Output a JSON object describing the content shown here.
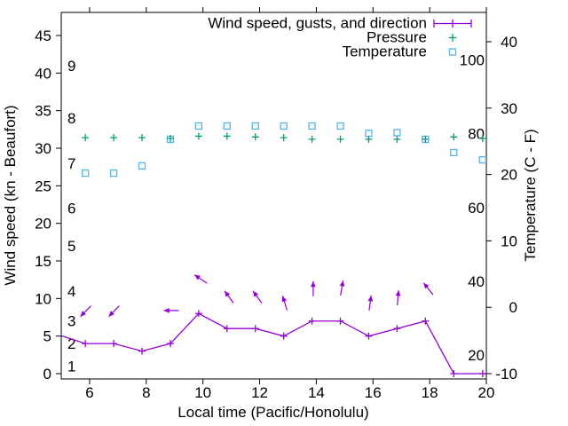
{
  "colors": {
    "wind": "#9400d3",
    "pressure": "#009e73",
    "temperature": "#56b4e9",
    "axis": "#000000",
    "background": "#ffffff"
  },
  "chart_data": {
    "type": "line",
    "title": "",
    "xlabel": "Local time (Pacific/Honolulu)",
    "ylabel_left": "Wind speed (kn - Beaufort)",
    "ylabel_right": "Temperature (C - F)",
    "legend": [
      "Wind speed, gusts, and direction",
      "Pressure",
      "Temperature"
    ],
    "legend_position": "top-right-inside",
    "grid": false,
    "x_axis": {
      "range": [
        5,
        20
      ],
      "tick_values": [
        6,
        8,
        10,
        12,
        14,
        16,
        18,
        20
      ],
      "tick_labels": [
        "6",
        "8",
        "10",
        "12",
        "14",
        "16",
        "18",
        "20"
      ]
    },
    "y_left_axis": {
      "range_ticks": [
        0,
        5,
        10,
        15,
        20,
        25,
        30,
        35,
        40,
        45
      ],
      "tick_labels": [
        "0",
        "5",
        "10",
        "15",
        "20",
        "25",
        "30",
        "35",
        "40",
        "45"
      ],
      "inner_beaufort_labels": [
        {
          "knots": 1,
          "label": "1"
        },
        {
          "knots": 4,
          "label": "2"
        },
        {
          "knots": 7,
          "label": "3"
        },
        {
          "knots": 11,
          "label": "4"
        },
        {
          "knots": 17,
          "label": "5"
        },
        {
          "knots": 22,
          "label": "6"
        },
        {
          "knots": 28,
          "label": "7"
        },
        {
          "knots": 34,
          "label": "8"
        },
        {
          "knots": 41,
          "label": "9"
        }
      ]
    },
    "y_right_axis": {
      "range_ticks_celsius": [
        -10,
        0,
        10,
        20,
        30,
        40
      ],
      "tick_labels": [
        "-10",
        "0",
        "10",
        "20",
        "30",
        "40"
      ],
      "inner_fahrenheit_labels": [
        {
          "fahrenheit": 20,
          "label": "20"
        },
        {
          "fahrenheit": 40,
          "label": "40"
        },
        {
          "fahrenheit": 60,
          "label": "60"
        },
        {
          "fahrenheit": 80,
          "label": "80"
        },
        {
          "fahrenheit": 100,
          "label": "100"
        }
      ]
    },
    "x_hours": [
      5.85,
      6.85,
      7.85,
      8.85,
      9.85,
      10.85,
      11.85,
      12.85,
      13.85,
      14.85,
      15.85,
      16.85,
      17.85,
      18.85,
      19.87
    ],
    "series": [
      {
        "name": "Wind speed, gusts, and direction",
        "axis": "left",
        "marker": "plus",
        "line": true,
        "values_knots": [
          4,
          4,
          3,
          4,
          8,
          6,
          6,
          5,
          7,
          7,
          5,
          6,
          7,
          0,
          0
        ],
        "edge_points": [
          {
            "hour": 5.0,
            "value_knots": 5.05
          },
          {
            "hour": 20.0,
            "value_knots": 0
          }
        ]
      },
      {
        "name": "Pressure",
        "axis": "left",
        "marker": "plus",
        "line": false,
        "values_left_axis_units": [
          31.4,
          31.4,
          31.4,
          31.3,
          31.6,
          31.6,
          31.5,
          31.4,
          31.2,
          31.2,
          31.2,
          31.2,
          31.2,
          31.5,
          31.3
        ]
      },
      {
        "name": "Temperature",
        "axis": "right",
        "marker": "square",
        "line": false,
        "values_celsius": [
          20.2,
          20.2,
          21.3,
          25.3,
          27.3,
          27.3,
          27.3,
          27.3,
          27.3,
          27.3,
          26.2,
          26.3,
          25.3,
          23.3,
          22.2
        ]
      }
    ],
    "wind_direction_arrows": [
      {
        "hour": 5.86,
        "value_knots": 8.3,
        "angle_deg_cw_from_up": 225
      },
      {
        "hour": 6.86,
        "value_knots": 8.3,
        "angle_deg_cw_from_up": 225
      },
      {
        "hour": 8.88,
        "value_knots": 8.4,
        "angle_deg_cw_from_up": 270
      },
      {
        "hour": 9.92,
        "value_knots": 12.6,
        "angle_deg_cw_from_up": 304
      },
      {
        "hour": 10.92,
        "value_knots": 10.2,
        "angle_deg_cw_from_up": 324
      },
      {
        "hour": 11.92,
        "value_knots": 10.2,
        "angle_deg_cw_from_up": 324
      },
      {
        "hour": 12.89,
        "value_knots": 9.4,
        "angle_deg_cw_from_up": 343
      },
      {
        "hour": 13.89,
        "value_knots": 11.3,
        "angle_deg_cw_from_up": 0
      },
      {
        "hour": 14.9,
        "value_knots": 11.4,
        "angle_deg_cw_from_up": 10
      },
      {
        "hour": 15.9,
        "value_knots": 9.4,
        "angle_deg_cw_from_up": 8
      },
      {
        "hour": 16.88,
        "value_knots": 10.1,
        "angle_deg_cw_from_up": 5
      },
      {
        "hour": 17.95,
        "value_knots": 11.3,
        "angle_deg_cw_from_up": 322
      }
    ]
  }
}
